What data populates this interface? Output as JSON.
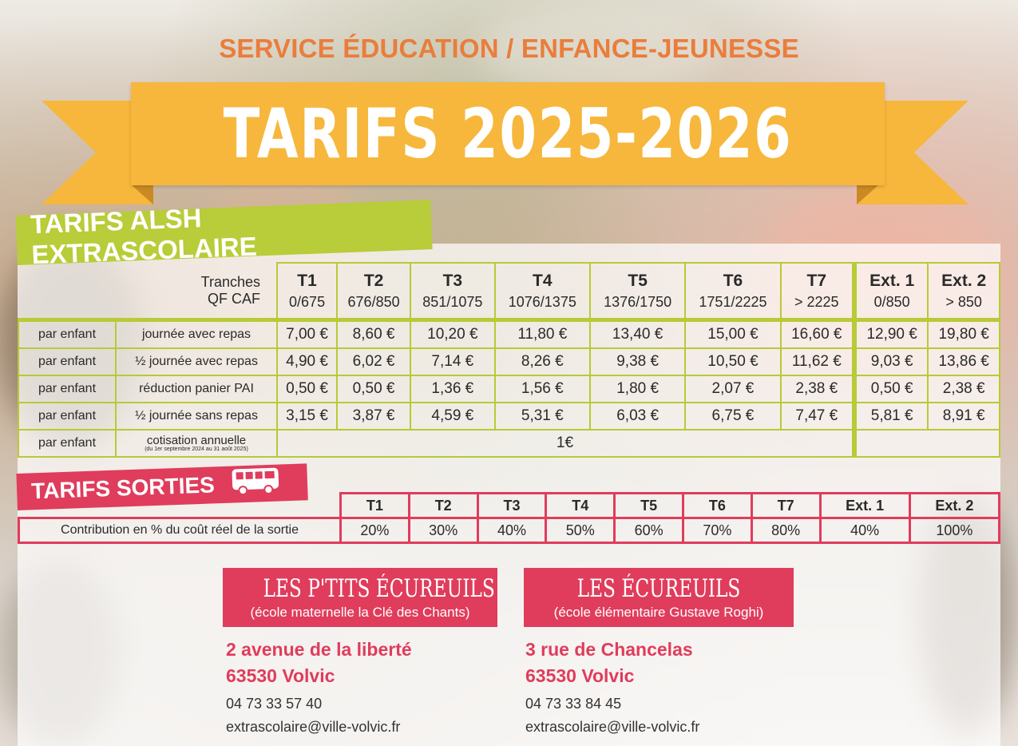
{
  "header": {
    "service": "SERVICE ÉDUCATION / ENFANCE-JEUNESSE",
    "banner_title": "TARIFS 2025-2026",
    "banner_color": "#f6b73c",
    "accent_orange": "#ea7d3c"
  },
  "alsh": {
    "section_title": "TARIFS ALSH EXTRASCOLAIRE",
    "section_color": "#b9cc39",
    "qf_label_line1": "Tranches",
    "qf_label_line2": "QF CAF",
    "tranches": [
      {
        "name": "T1",
        "range": "0/675"
      },
      {
        "name": "T2",
        "range": "676/850"
      },
      {
        "name": "T3",
        "range": "851/1075"
      },
      {
        "name": "T4",
        "range": "1076/1375"
      },
      {
        "name": "T5",
        "range": "1376/1750"
      },
      {
        "name": "T6",
        "range": "1751/2225"
      },
      {
        "name": "T7",
        "range": "> 2225"
      },
      {
        "name": "Ext. 1",
        "range": "0/850"
      },
      {
        "name": "Ext. 2",
        "range": "> 850"
      }
    ],
    "rows": [
      {
        "who": "par enfant",
        "label": "journée avec repas",
        "values": [
          "7,00 €",
          "8,60 €",
          "10,20 €",
          "11,80 €",
          "13,40 €",
          "15,00 €",
          "16,60 €",
          "12,90 €",
          "19,80 €"
        ]
      },
      {
        "who": "par enfant",
        "label": "½ journée avec repas",
        "values": [
          "4,90 €",
          "6,02 €",
          "7,14 €",
          "8,26 €",
          "9,38 €",
          "10,50 €",
          "11,62 €",
          "9,03 €",
          "13,86 €"
        ]
      },
      {
        "who": "par enfant",
        "label": "réduction panier PAI",
        "values": [
          "0,50 €",
          "0,50 €",
          "1,36 €",
          "1,56 €",
          "1,80 €",
          "2,07 €",
          "2,38 €",
          "0,50 €",
          "2,38 €"
        ]
      },
      {
        "who": "par enfant",
        "label": "½ journée sans repas",
        "values": [
          "3,15 €",
          "3,87 €",
          "4,59 €",
          "5,31 €",
          "6,03 €",
          "6,75 €",
          "7,47 €",
          "5,81 €",
          "8,91 €"
        ]
      }
    ],
    "cotisation": {
      "who": "par enfant",
      "label": "cotisation annuelle",
      "note": "(du 1er septembre 2024 au 31 août 2025)",
      "value": "1€"
    }
  },
  "sorties": {
    "section_title": "TARIFS SORTIES",
    "section_color": "#e03c5c",
    "icon": "bus-icon",
    "headers": [
      "T1",
      "T2",
      "T3",
      "T4",
      "T5",
      "T6",
      "T7",
      "Ext. 1",
      "Ext. 2"
    ],
    "row_label": "Contribution en % du coût réel de la sortie",
    "values": [
      "20%",
      "30%",
      "40%",
      "50%",
      "60%",
      "70%",
      "80%",
      "40%",
      "100%"
    ]
  },
  "schools": [
    {
      "name": "LES P'TITS ÉCUREUILS",
      "sub": "(école maternelle la Clé des Chants)",
      "address1": "2 avenue de la liberté",
      "address2": "63530 Volvic",
      "phone": "04 73 33 57 40",
      "email": "extrascolaire@ville-volvic.fr"
    },
    {
      "name": "LES ÉCUREUILS",
      "sub": "(école élémentaire Gustave Roghi)",
      "address1": "3 rue de Chancelas",
      "address2": "63530 Volvic",
      "phone": "04 73 33 84 45",
      "email": "extrascolaire@ville-volvic.fr"
    }
  ]
}
